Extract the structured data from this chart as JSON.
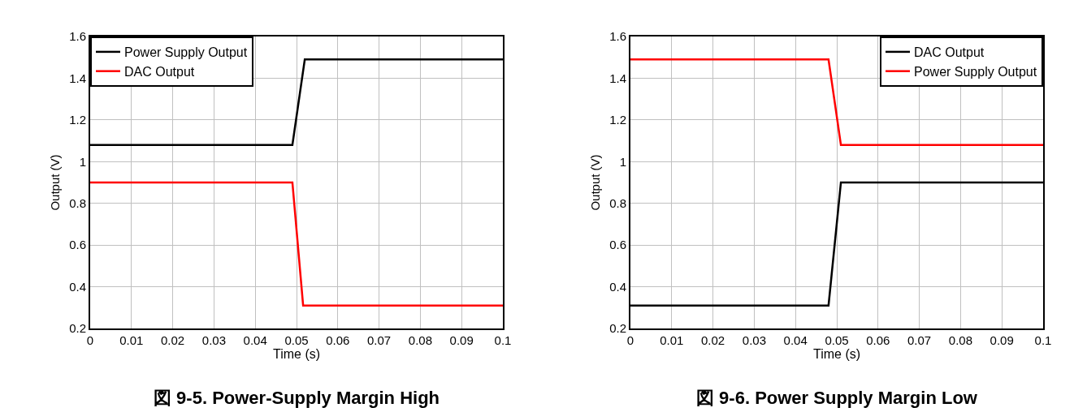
{
  "chart_data": [
    {
      "type": "line",
      "title": "図 9-5. Power-Supply Margin High",
      "xlabel": "Time (s)",
      "ylabel": "Output (V)",
      "xlim": [
        0,
        0.1
      ],
      "xticks": [
        0,
        0.01,
        0.02,
        0.03,
        0.04,
        0.05,
        0.06,
        0.07,
        0.08,
        0.09,
        0.1
      ],
      "ylim": [
        0.2,
        1.6
      ],
      "yticks": [
        0.2,
        0.4,
        0.6,
        0.8,
        1,
        1.2,
        1.4,
        1.6
      ],
      "grid": true,
      "legend": "top left",
      "marker": "none",
      "line_style": "solid",
      "series": [
        {
          "name": "Power Supply Output",
          "color": "#000000",
          "x": [
            0,
            0.049,
            0.052,
            0.1
          ],
          "values": [
            1.08,
            1.08,
            1.49,
            1.49
          ]
        },
        {
          "name": "DAC Output",
          "color": "#ff0000",
          "x": [
            0,
            0.049,
            0.0516,
            0.1
          ],
          "values": [
            0.9,
            0.9,
            0.31,
            0.31
          ]
        }
      ]
    },
    {
      "type": "line",
      "title": "図 9-6. Power Supply Margin Low",
      "xlabel": "Time (s)",
      "ylabel": "Output (V)",
      "xlim": [
        0,
        0.1
      ],
      "xticks": [
        0,
        0.01,
        0.02,
        0.03,
        0.04,
        0.05,
        0.06,
        0.07,
        0.08,
        0.09,
        0.1
      ],
      "ylim": [
        0.2,
        1.6
      ],
      "yticks": [
        0.2,
        0.4,
        0.6,
        0.8,
        1,
        1.2,
        1.4,
        1.6
      ],
      "grid": true,
      "legend": "top right",
      "marker": "none",
      "line_style": "solid",
      "series": [
        {
          "name": "DAC Output",
          "color": "#000000",
          "x": [
            0,
            0.048,
            0.051,
            0.1
          ],
          "values": [
            0.31,
            0.31,
            0.9,
            0.9
          ]
        },
        {
          "name": "Power Supply Output",
          "color": "#ff0000",
          "x": [
            0,
            0.048,
            0.051,
            0.1
          ],
          "values": [
            1.49,
            1.49,
            1.08,
            1.08
          ]
        }
      ]
    }
  ]
}
